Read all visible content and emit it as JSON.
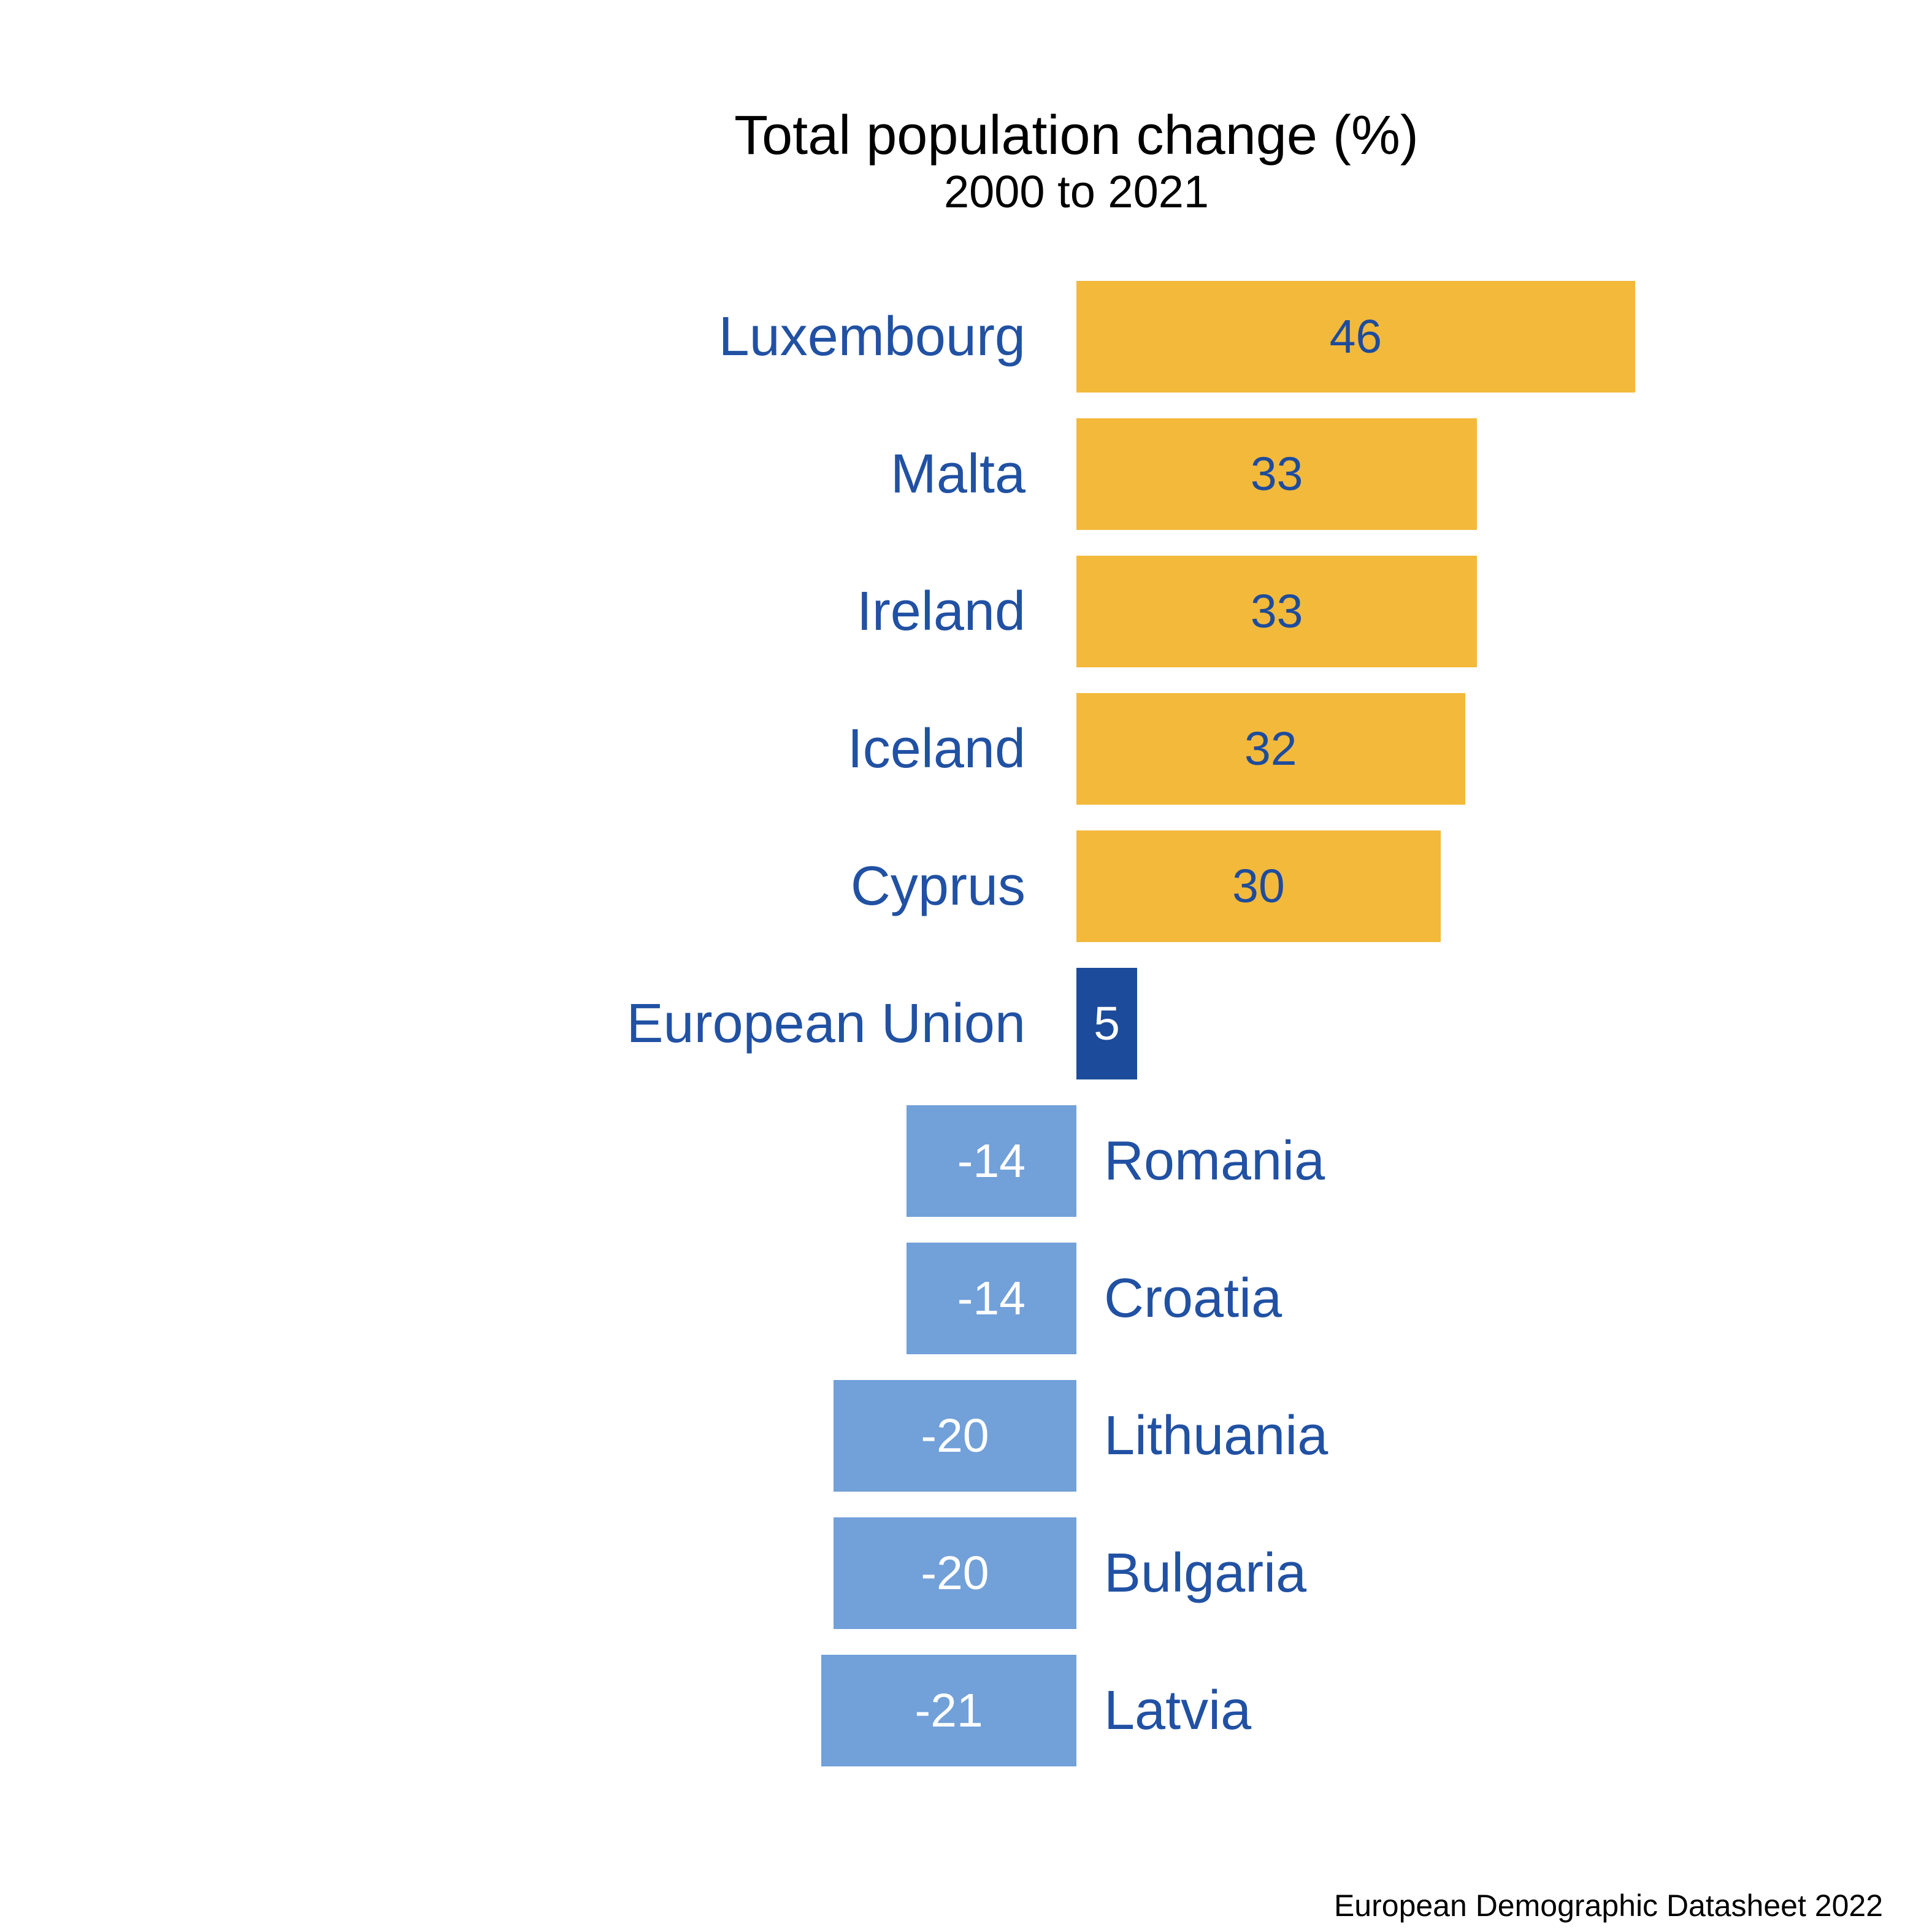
{
  "chart_data": {
    "type": "bar",
    "orientation": "horizontal",
    "title": "Total population change (%)",
    "subtitle": "2000 to 2021",
    "source": "European Demographic Datasheet 2022",
    "categories": [
      "Luxembourg",
      "Malta",
      "Ireland",
      "Iceland",
      "Cyprus",
      "European Union",
      "Romania",
      "Croatia",
      "Lithuania",
      "Bulgaria",
      "Latvia"
    ],
    "values": [
      46,
      33,
      33,
      32,
      30,
      5,
      -14,
      -14,
      -20,
      -20,
      -21
    ],
    "value_labels": [
      "46",
      "33",
      "33",
      "32",
      "30",
      "5",
      "-14",
      "-14",
      "-20",
      "-20",
      "-21"
    ],
    "bar_styles": [
      "positive",
      "positive",
      "positive",
      "positive",
      "positive",
      "eu",
      "negative",
      "negative",
      "negative",
      "negative",
      "negative"
    ],
    "xlim": [
      -21,
      46
    ],
    "baseline_value": 0,
    "grid": false,
    "axes_hidden": true,
    "legend_position": "none",
    "colors": {
      "positive_bar": "#F3B93B",
      "eu_bar": "#1C4B9B",
      "negative_bar": "#72A0D9",
      "category_label_text": "#2151A3",
      "value_text_on_yellow": "#1E4C9D",
      "value_text_on_blue": "#FFFFFF",
      "title_text": "#000000",
      "background": "#FFFFFF"
    }
  }
}
